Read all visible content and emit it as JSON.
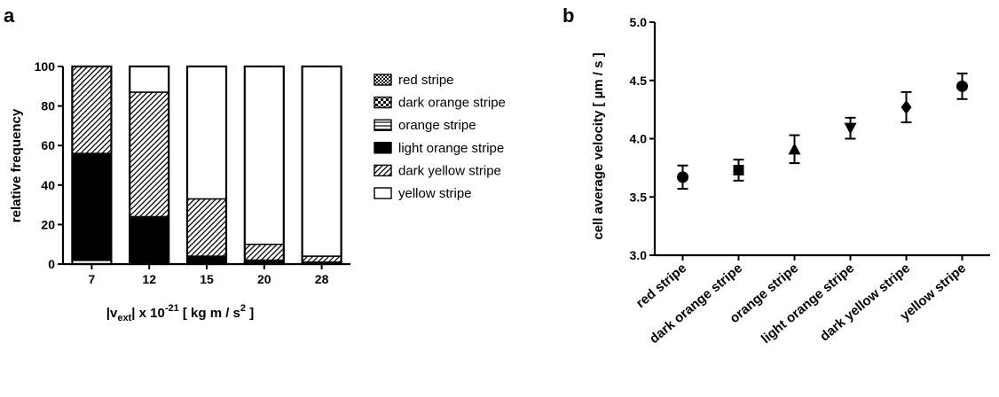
{
  "panels": {
    "a": "a",
    "b": "b"
  },
  "chart_data": [
    {
      "type": "bar",
      "stacked": true,
      "categories": [
        "7",
        "12",
        "15",
        "20",
        "28"
      ],
      "ylim": [
        0,
        100
      ],
      "yticks": [
        "0",
        "20",
        "40",
        "60",
        "80",
        "100"
      ],
      "ylabel": "relative frequency",
      "xlabel": {
        "pre": "|v",
        "sub": "ext",
        "mid": "| x 10",
        "sup": "-21",
        "post": " [ kg m / s",
        "sup2": "2",
        "end": " ]"
      },
      "legend_position": "right",
      "series": [
        {
          "name": "red stripe",
          "pattern": "checker",
          "values": [
            0,
            0,
            0,
            0,
            0
          ]
        },
        {
          "name": "dark orange stripe",
          "pattern": "checker-bold",
          "values": [
            0,
            0,
            0,
            0,
            0
          ]
        },
        {
          "name": "orange stripe",
          "pattern": "horizontal",
          "values": [
            2,
            0,
            0,
            0,
            0
          ]
        },
        {
          "name": "light orange stripe",
          "pattern": "solid",
          "values": [
            54,
            24,
            4,
            2,
            1
          ]
        },
        {
          "name": "dark yellow stripe",
          "pattern": "diagonal",
          "values": [
            44,
            63,
            29,
            8,
            3
          ]
        },
        {
          "name": "yellow stripe",
          "pattern": "white",
          "values": [
            0,
            13,
            67,
            90,
            96
          ]
        }
      ]
    },
    {
      "type": "scatter",
      "error_bars": true,
      "categories": [
        "red stripe",
        "dark orange stripe",
        "orange stripe",
        "light orange stripe",
        "dark yellow stripe",
        "yellow stripe"
      ],
      "markers": [
        "circle",
        "square",
        "triangle-up",
        "triangle-down",
        "diamond",
        "circle"
      ],
      "values": [
        3.67,
        3.73,
        3.91,
        4.09,
        4.27,
        4.45
      ],
      "errors": [
        0.1,
        0.09,
        0.12,
        0.09,
        0.13,
        0.11
      ],
      "ylim": [
        3.0,
        5.0
      ],
      "yticks": [
        "3.0",
        "3.5",
        "4.0",
        "4.5",
        "5.0"
      ],
      "ylabel": "cell average velocity  [ µm / s ]"
    }
  ]
}
